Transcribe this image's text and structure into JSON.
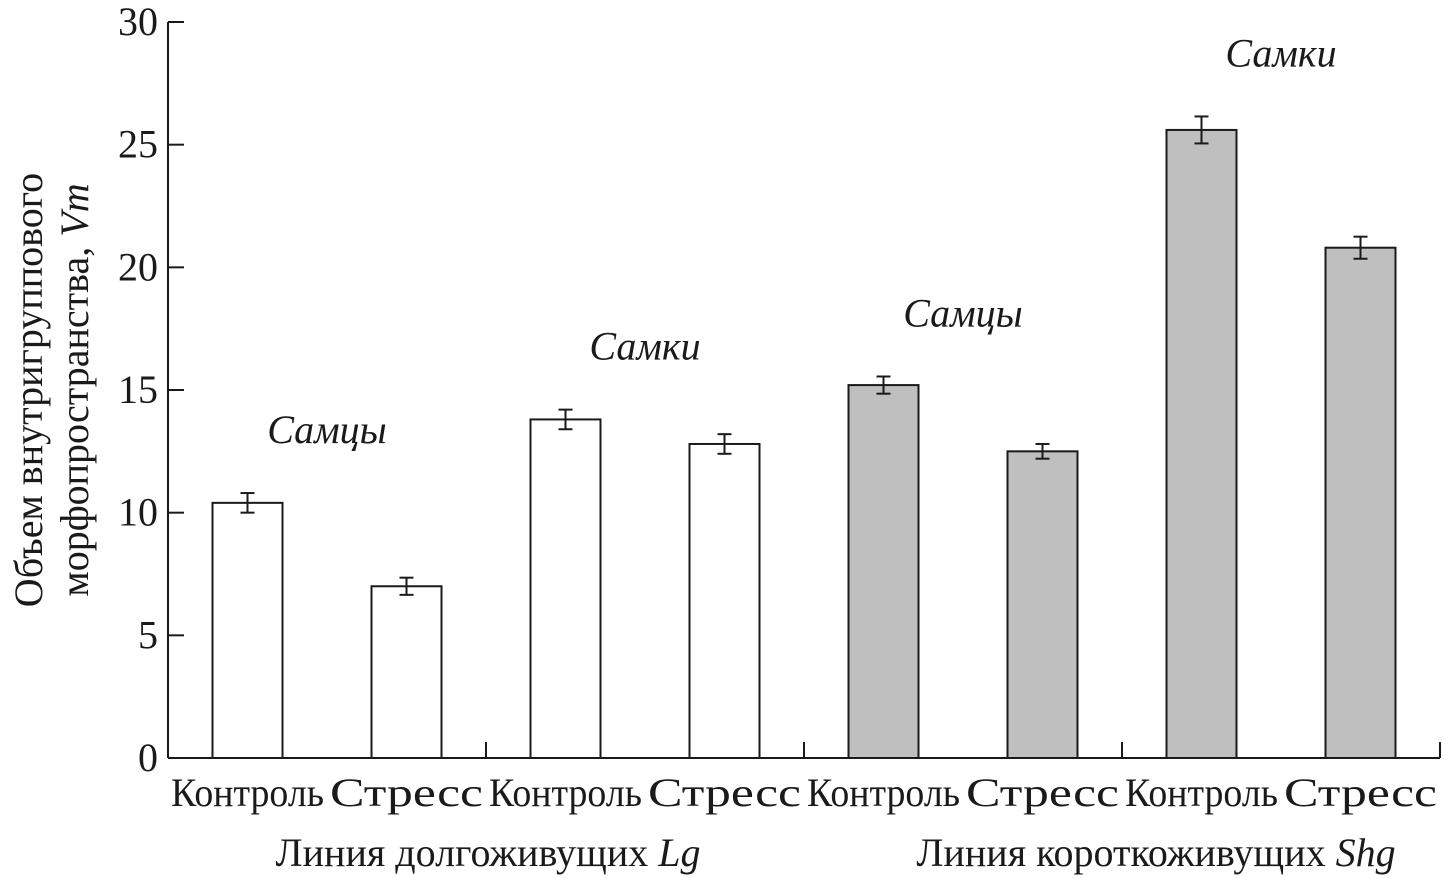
{
  "chart_data": {
    "type": "bar",
    "title": "",
    "ylabel_line1": "Объем внутригруппового",
    "ylabel_line2_text": "морфопространства, ",
    "ylabel_line2_italic": "Vm",
    "ylim": [
      0,
      30
    ],
    "yticks": [
      0,
      5,
      10,
      15,
      20,
      25,
      30
    ],
    "grid": false,
    "categories": [
      "Контроль",
      "Стресс",
      "Контроль",
      "Стресс",
      "Контроль",
      "Стресс",
      "Контроль",
      "Стресс"
    ],
    "values": [
      10.4,
      7.0,
      13.8,
      12.8,
      15.2,
      12.5,
      25.6,
      20.8
    ],
    "errors": [
      0.4,
      0.35,
      0.4,
      0.4,
      0.35,
      0.3,
      0.55,
      0.45
    ],
    "fill_colors": [
      "#ffffff",
      "#ffffff",
      "#ffffff",
      "#ffffff",
      "#bfbfbf",
      "#bfbfbf",
      "#bfbfbf",
      "#bfbfbf"
    ],
    "annotations": [
      {
        "text": "Самцы",
        "pair": 0
      },
      {
        "text": "Самки",
        "pair": 1
      },
      {
        "text": "Самцы",
        "pair": 2
      },
      {
        "text": "Самки",
        "pair": 3
      }
    ],
    "groups": [
      {
        "text": "Линия долгоживущих ",
        "italic": "Lg"
      },
      {
        "text": "Линия короткоживущих ",
        "italic": "Shg"
      }
    ]
  },
  "colors": {
    "axis": "#1a1a1a",
    "bar_stroke": "#1a1a1a",
    "long_lived_fill": "#ffffff",
    "short_lived_fill": "#bfbfbf"
  }
}
